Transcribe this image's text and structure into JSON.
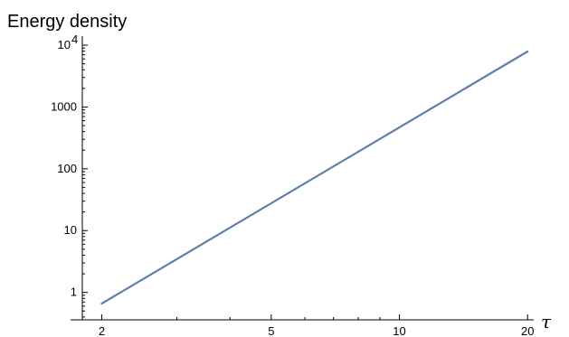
{
  "chart_data": {
    "type": "line",
    "title": "Energy density",
    "xlabel": "τ",
    "ylabel": "",
    "x_scale": "log",
    "y_scale": "log",
    "xlim": [
      1.8,
      21.5
    ],
    "ylim": [
      0.36,
      14000
    ],
    "x_ticks": [
      {
        "value": 2,
        "label": "2"
      },
      {
        "value": 5,
        "label": "5"
      },
      {
        "value": 10,
        "label": "10"
      },
      {
        "value": 20,
        "label": "20"
      }
    ],
    "y_ticks": [
      {
        "value": 1,
        "label": "1",
        "exp": ""
      },
      {
        "value": 10,
        "label": "10",
        "exp": ""
      },
      {
        "value": 100,
        "label": "100",
        "exp": ""
      },
      {
        "value": 1000,
        "label": "1000",
        "exp": ""
      },
      {
        "value": 10000,
        "label": "10",
        "exp": "4"
      }
    ],
    "series": [
      {
        "color": "#5f7fab",
        "points": [
          [
            2,
            0.66
          ],
          [
            20,
            7900
          ]
        ]
      }
    ],
    "grid": false
  }
}
